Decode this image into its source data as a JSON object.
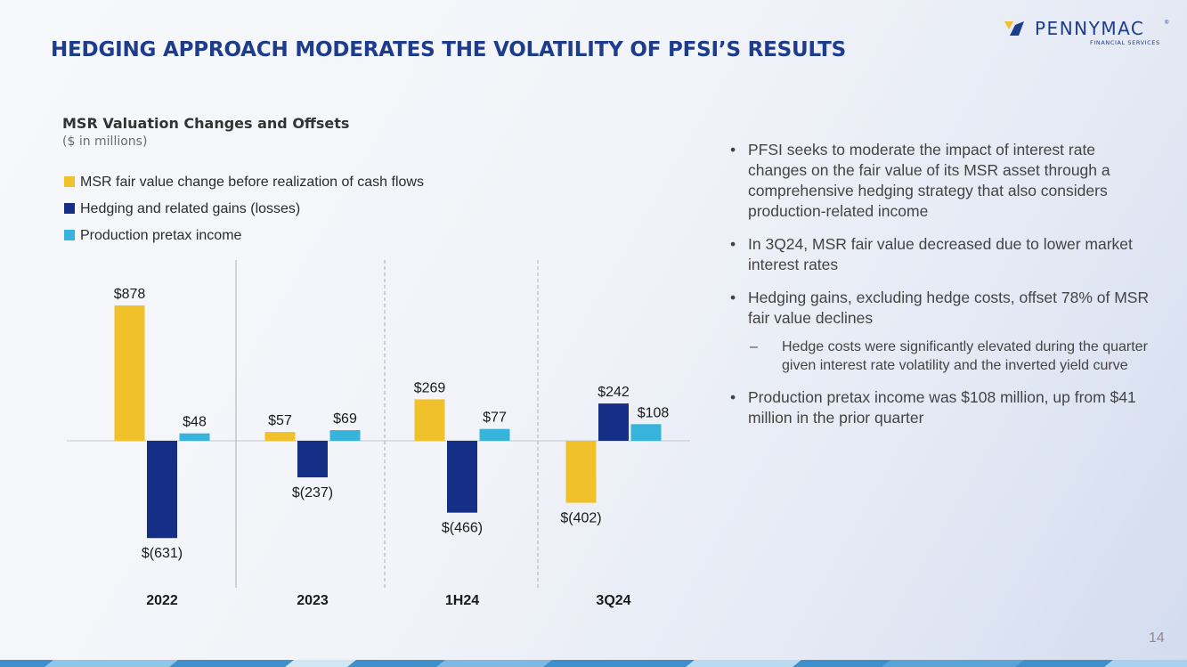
{
  "slide": {
    "title": "HEDGING APPROACH MODERATES THE VOLATILITY OF PFSI’S RESULTS",
    "page_number": "14"
  },
  "logo": {
    "name": "PENNYMAC",
    "subtitle": "FINANCIAL SERVICES",
    "registered": "®"
  },
  "colors": {
    "title": "#1d3c8c",
    "msr": "#f0c12b",
    "hedging": "#142f85",
    "production": "#37b3dc"
  },
  "chart_data": {
    "type": "bar",
    "title": "MSR Valuation Changes and Offsets",
    "subtitle": "($ in millions)",
    "categories": [
      "2022",
      "2023",
      "1H24",
      "3Q24"
    ],
    "series": [
      {
        "name": "MSR fair value change before realization of cash flows",
        "color": "#f0c12b",
        "values": [
          878,
          57,
          269,
          -402
        ],
        "labels": [
          "$878",
          "$57",
          "$269",
          "$(402)"
        ]
      },
      {
        "name": "Hedging and related gains (losses)",
        "color": "#142f85",
        "values": [
          -631,
          -237,
          -466,
          242
        ],
        "labels": [
          "$(631)",
          "$(237)",
          "$(466)",
          "$242"
        ]
      },
      {
        "name": "Production pretax income",
        "color": "#37b3dc",
        "values": [
          48,
          69,
          77,
          108
        ],
        "labels": [
          "$48",
          "$69",
          "$77",
          "$108"
        ]
      }
    ],
    "ylim": [
      -700,
      1050
    ],
    "legend_position": "top-left",
    "xlabel": "",
    "ylabel": ""
  },
  "bullets": [
    {
      "text": "PFSI seeks to moderate the impact of interest rate changes on the fair value of its MSR asset through a comprehensive hedging strategy that also considers production-related income",
      "sub": []
    },
    {
      "text": "In 3Q24, MSR fair value decreased due to lower market interest rates",
      "sub": []
    },
    {
      "text": "Hedging gains, excluding hedge costs, offset 78% of MSR fair value declines",
      "sub": [
        "Hedge costs were significantly elevated during the quarter given interest rate volatility and the inverted yield curve"
      ]
    },
    {
      "text": "Production pretax income was $108 million, up from $41 million in the prior quarter",
      "sub": []
    }
  ],
  "symbols": {
    "bullet": "•",
    "dash": "–"
  }
}
